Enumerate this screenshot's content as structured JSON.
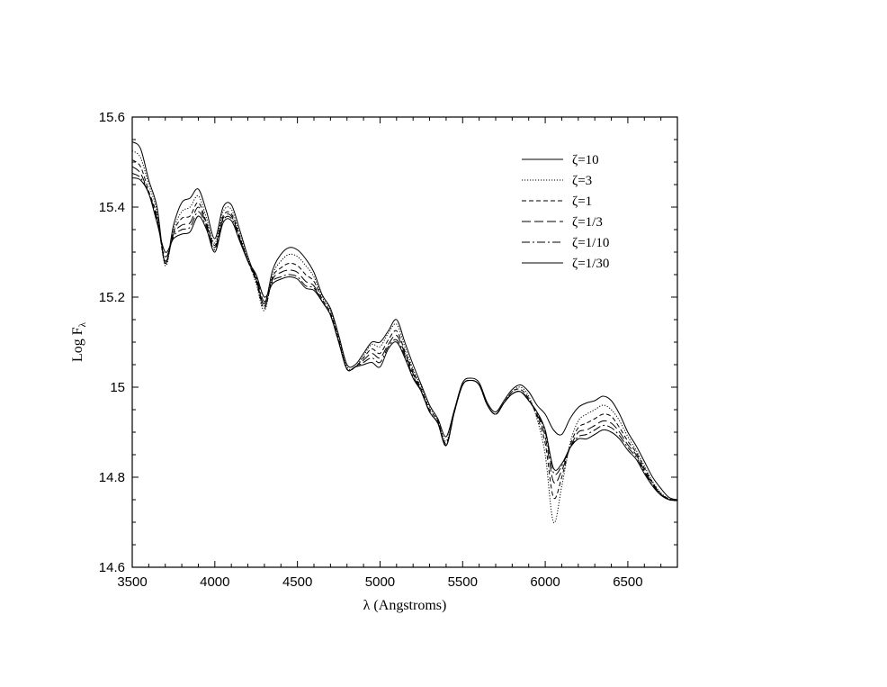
{
  "chart_data": {
    "type": "line",
    "title": "",
    "xlabel": "λ (Angstroms)",
    "ylabel_main": "Log F",
    "ylabel_sub": "λ",
    "xlim": [
      3500,
      6800
    ],
    "ylim": [
      14.6,
      15.6
    ],
    "xticks": [
      3500,
      4000,
      4500,
      5000,
      5500,
      6000,
      6500
    ],
    "xtick_labels": [
      "3500",
      "4000",
      "4500",
      "5000",
      "5500",
      "6000",
      "6500"
    ],
    "yticks": [
      14.6,
      14.8,
      15.0,
      15.2,
      15.4,
      15.6
    ],
    "ytick_labels": [
      "14.6",
      "14.8",
      "15",
      "15.2",
      "15.4",
      "15.6"
    ],
    "grid": false,
    "legend_position": "top-right",
    "x": [
      3500,
      3550,
      3600,
      3650,
      3700,
      3750,
      3800,
      3850,
      3900,
      3950,
      4000,
      4050,
      4100,
      4150,
      4200,
      4250,
      4300,
      4350,
      4400,
      4450,
      4500,
      4550,
      4600,
      4650,
      4700,
      4750,
      4800,
      4850,
      4900,
      4950,
      5000,
      5050,
      5100,
      5150,
      5200,
      5250,
      5300,
      5350,
      5400,
      5450,
      5500,
      5550,
      5600,
      5650,
      5700,
      5750,
      5800,
      5850,
      5900,
      5950,
      6000,
      6050,
      6100,
      6150,
      6200,
      6250,
      6300,
      6350,
      6400,
      6450,
      6500,
      6550,
      6600,
      6650,
      6700,
      6750,
      6800
    ],
    "series": [
      {
        "name": "ζ=10",
        "dash": "solid",
        "values": [
          15.545,
          15.53,
          15.46,
          15.4,
          15.275,
          15.36,
          15.41,
          15.42,
          15.44,
          15.39,
          15.33,
          15.4,
          15.405,
          15.35,
          15.29,
          15.24,
          15.185,
          15.26,
          15.295,
          15.31,
          15.305,
          15.285,
          15.255,
          15.205,
          15.175,
          15.115,
          15.05,
          15.05,
          15.075,
          15.1,
          15.1,
          15.125,
          15.15,
          15.1,
          15.05,
          15.005,
          14.96,
          14.93,
          14.89,
          14.95,
          15.01,
          15.02,
          15.01,
          14.965,
          14.945,
          14.97,
          14.995,
          15.005,
          14.99,
          14.96,
          14.94,
          14.905,
          14.895,
          14.93,
          14.955,
          14.965,
          14.97,
          14.98,
          14.97,
          14.94,
          14.9,
          14.87,
          14.835,
          14.8,
          14.775,
          14.755,
          14.75
        ]
      },
      {
        "name": "ζ=3",
        "dash": "dotted",
        "values": [
          15.525,
          15.51,
          15.45,
          15.39,
          15.27,
          15.35,
          15.39,
          15.4,
          15.425,
          15.375,
          15.32,
          15.39,
          15.395,
          15.34,
          15.285,
          15.23,
          15.17,
          15.25,
          15.28,
          15.295,
          15.29,
          15.27,
          15.245,
          15.2,
          15.17,
          15.11,
          15.045,
          15.045,
          15.07,
          15.095,
          15.09,
          15.12,
          15.14,
          15.09,
          15.04,
          15.0,
          14.955,
          14.925,
          14.88,
          14.945,
          15.005,
          15.015,
          15.005,
          14.96,
          14.94,
          14.965,
          14.99,
          15.0,
          14.98,
          14.93,
          14.85,
          14.7,
          14.78,
          14.875,
          14.925,
          14.94,
          14.95,
          14.96,
          14.95,
          14.925,
          14.89,
          14.86,
          14.825,
          14.79,
          14.765,
          14.752,
          14.748
        ]
      },
      {
        "name": "ζ=1",
        "dash": "short-dash",
        "values": [
          15.505,
          15.49,
          15.435,
          15.38,
          15.275,
          15.345,
          15.375,
          15.38,
          15.41,
          15.365,
          15.315,
          15.38,
          15.385,
          15.335,
          15.28,
          15.235,
          15.175,
          15.245,
          15.265,
          15.275,
          15.27,
          15.25,
          15.235,
          15.195,
          15.165,
          15.105,
          15.04,
          15.045,
          15.065,
          15.085,
          15.075,
          15.105,
          15.125,
          15.08,
          15.035,
          14.995,
          14.95,
          14.925,
          14.875,
          14.945,
          15.005,
          15.015,
          15.005,
          14.96,
          14.94,
          14.965,
          14.99,
          14.995,
          14.975,
          14.935,
          14.875,
          14.755,
          14.8,
          14.87,
          14.91,
          14.92,
          14.93,
          14.94,
          14.935,
          14.91,
          14.88,
          14.855,
          14.82,
          14.788,
          14.763,
          14.752,
          14.748
        ]
      },
      {
        "name": "ζ=1/3",
        "dash": "long-dash",
        "values": [
          15.49,
          15.475,
          15.43,
          15.375,
          15.28,
          15.34,
          15.36,
          15.365,
          15.4,
          15.36,
          15.31,
          15.375,
          15.38,
          15.33,
          15.28,
          15.24,
          15.18,
          15.24,
          15.255,
          15.26,
          15.255,
          15.235,
          15.225,
          15.19,
          15.16,
          15.1,
          15.04,
          15.045,
          15.06,
          15.075,
          15.065,
          15.095,
          15.115,
          15.075,
          15.03,
          14.99,
          14.945,
          14.92,
          14.872,
          14.945,
          15.005,
          15.015,
          15.005,
          14.96,
          14.94,
          14.965,
          14.985,
          14.99,
          14.972,
          14.94,
          14.89,
          14.79,
          14.815,
          14.865,
          14.9,
          14.905,
          14.915,
          14.925,
          14.92,
          14.9,
          14.872,
          14.85,
          14.815,
          14.785,
          14.762,
          14.751,
          14.748
        ]
      },
      {
        "name": "ζ=1/10",
        "dash": "dash-dot",
        "values": [
          15.475,
          15.465,
          15.43,
          15.37,
          15.29,
          15.335,
          15.35,
          15.355,
          15.39,
          15.355,
          15.305,
          15.37,
          15.375,
          15.33,
          15.28,
          15.245,
          15.19,
          15.235,
          15.245,
          15.25,
          15.245,
          15.225,
          15.22,
          15.19,
          15.16,
          15.1,
          15.04,
          15.045,
          15.055,
          15.065,
          15.055,
          15.09,
          15.105,
          15.07,
          15.025,
          14.99,
          14.945,
          14.92,
          14.87,
          14.945,
          15.005,
          15.015,
          15.005,
          14.96,
          14.94,
          14.965,
          14.985,
          14.99,
          14.97,
          14.942,
          14.9,
          14.81,
          14.825,
          14.865,
          14.89,
          14.895,
          14.905,
          14.915,
          14.91,
          14.892,
          14.866,
          14.845,
          14.812,
          14.783,
          14.761,
          14.75,
          14.748
        ]
      },
      {
        "name": "ζ=1/30",
        "dash": "solid",
        "values": [
          15.465,
          15.46,
          15.43,
          15.365,
          15.3,
          15.33,
          15.34,
          15.345,
          15.38,
          15.35,
          15.3,
          15.365,
          15.37,
          15.325,
          15.28,
          15.25,
          15.2,
          15.23,
          15.24,
          15.245,
          15.24,
          15.22,
          15.215,
          15.19,
          15.16,
          15.1,
          15.04,
          15.045,
          15.05,
          15.055,
          15.045,
          15.085,
          15.1,
          15.065,
          15.02,
          14.99,
          14.945,
          14.92,
          14.87,
          14.945,
          15.005,
          15.015,
          15.005,
          14.96,
          14.94,
          14.965,
          14.985,
          14.99,
          14.97,
          14.945,
          14.905,
          14.82,
          14.83,
          14.865,
          14.885,
          14.885,
          14.895,
          14.905,
          14.9,
          14.885,
          14.86,
          14.84,
          14.808,
          14.78,
          14.76,
          14.75,
          14.748
        ]
      }
    ]
  }
}
